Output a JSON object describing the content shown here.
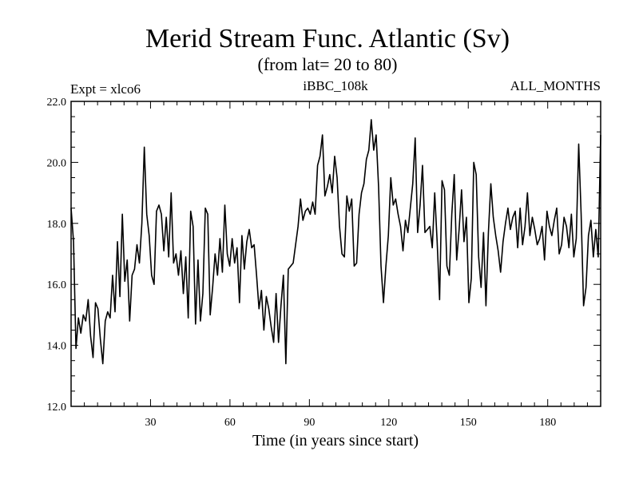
{
  "chart_data": {
    "type": "line",
    "title": "Merid Stream Func. Atlantic (Sv)",
    "subtitle": "(from lat= 20 to 80)",
    "annotations": {
      "left": "Expt = xlco6",
      "center": "iBBC_108k",
      "right": "ALL_MONTHS"
    },
    "xlabel": "Time (in years since start)",
    "ylabel": "",
    "xlim": [
      0,
      200
    ],
    "ylim": [
      12.0,
      22.0
    ],
    "x_ticks": [
      30,
      60,
      90,
      120,
      150,
      180
    ],
    "y_ticks": [
      12.0,
      14.0,
      16.0,
      18.0,
      20.0,
      22.0
    ],
    "grid": false,
    "series": [
      {
        "values": [
          18.5,
          17.4,
          13.9,
          14.9,
          14.4,
          15.0,
          14.8,
          15.5,
          14.3,
          13.6,
          15.4,
          15.2,
          14.2,
          13.4,
          14.8,
          15.1,
          14.9,
          16.3,
          15.1,
          17.4,
          15.6,
          18.3,
          16.1,
          16.8,
          14.8,
          16.3,
          16.5,
          17.3,
          16.7,
          18.0,
          20.5,
          18.3,
          17.6,
          16.3,
          16.0,
          18.4,
          18.6,
          18.3,
          17.1,
          18.2,
          16.9,
          19.0,
          16.7,
          17.0,
          16.3,
          17.1,
          15.7,
          16.9,
          14.9,
          18.4,
          17.9,
          14.7,
          16.8,
          14.8,
          15.7,
          18.5,
          18.3,
          15.0,
          15.9,
          17.0,
          16.3,
          17.5,
          16.4,
          18.6,
          17.0,
          16.6,
          17.5,
          16.7,
          17.2,
          15.4,
          17.6,
          16.5,
          17.4,
          17.8,
          17.2,
          17.3,
          16.3,
          15.2,
          15.8,
          14.5,
          15.6,
          15.2,
          14.6,
          14.1,
          15.7,
          14.1,
          15.3,
          16.3,
          13.4,
          16.5,
          16.6,
          16.7,
          17.3,
          17.9,
          18.8,
          18.1,
          18.4,
          18.5,
          18.3,
          18.7,
          18.3,
          19.9,
          20.2,
          20.9,
          18.9,
          19.2,
          19.6,
          19.0,
          20.2,
          19.5,
          17.9,
          17.0,
          16.9,
          18.9,
          18.4,
          18.8,
          16.6,
          16.7,
          18.3,
          19.0,
          19.3,
          20.1,
          20.4,
          21.4,
          20.4,
          20.9,
          19.2,
          16.6,
          15.4,
          16.6,
          17.6,
          19.5,
          18.6,
          18.8,
          18.3,
          17.9,
          17.1,
          18.1,
          17.7,
          18.5,
          19.3,
          20.8,
          17.7,
          18.6,
          19.9,
          17.7,
          17.8,
          17.9,
          17.2,
          19.0,
          17.4,
          15.5,
          19.4,
          19.1,
          16.6,
          16.3,
          18.3,
          19.6,
          16.8,
          17.8,
          19.1,
          17.4,
          18.2,
          15.4,
          16.2,
          20.0,
          19.6,
          16.9,
          15.9,
          17.7,
          15.3,
          17.7,
          19.3,
          18.2,
          17.6,
          17.1,
          16.4,
          17.4,
          18.0,
          18.5,
          17.8,
          18.2,
          18.4,
          17.2,
          18.5,
          17.3,
          17.9,
          19.0,
          17.6,
          18.2,
          17.8,
          17.3,
          17.5,
          17.9,
          16.8,
          18.4,
          17.9,
          17.6,
          18.1,
          18.5,
          17.0,
          17.3,
          18.2,
          17.9,
          17.2,
          18.3,
          16.9,
          17.5,
          20.6,
          18.3,
          15.3,
          15.9,
          17.6,
          18.1,
          16.9,
          17.8,
          16.9,
          20.9
        ]
      }
    ]
  }
}
